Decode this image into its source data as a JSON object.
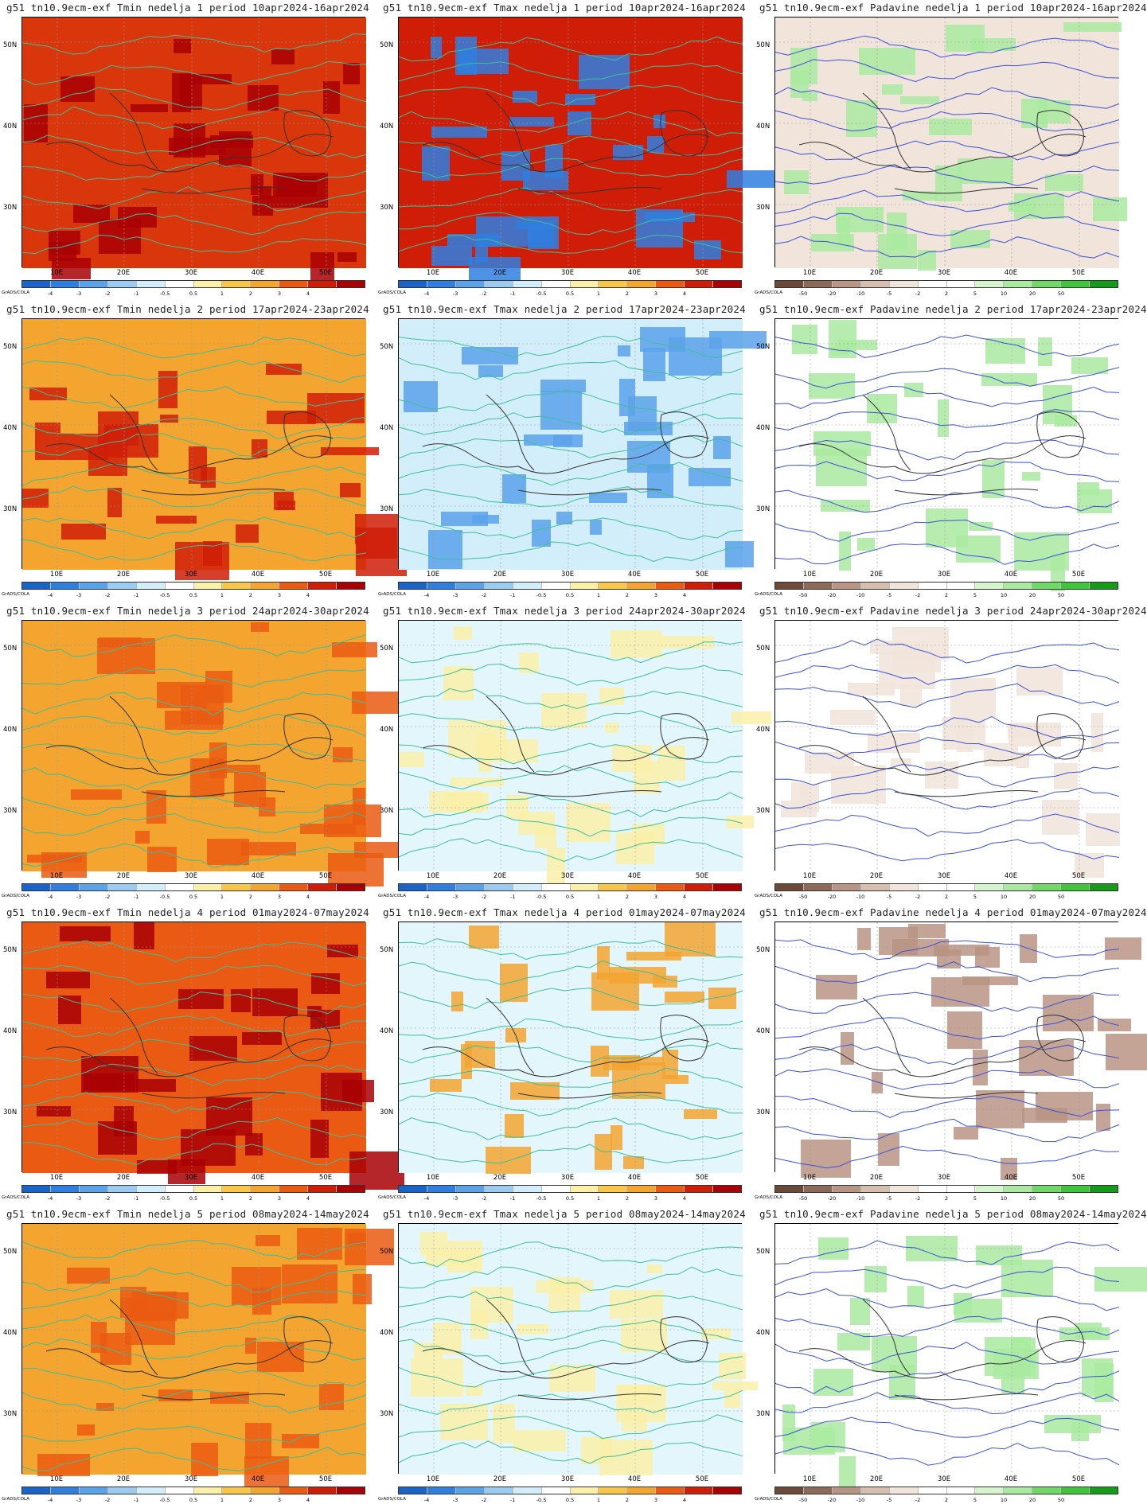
{
  "figure": {
    "y_axis_labels": [
      "50N",
      "40N",
      "30N"
    ],
    "x_axis_labels": [
      "10E",
      "20E",
      "30E",
      "40E",
      "50E"
    ],
    "grads_credit": "GrADS/COLA"
  },
  "legends": {
    "temperature": {
      "ticks": [
        "-4",
        "-3",
        "-2",
        "-1",
        "-0.5",
        "0.5",
        "1",
        "2",
        "3",
        "4"
      ],
      "colors": [
        "#1a63c8",
        "#2f7fe0",
        "#5aa2ea",
        "#9ccbf2",
        "#d2eefb",
        "#ffffff",
        "#fbf0a8",
        "#f8c74a",
        "#f3a52f",
        "#ea5a12",
        "#cf1d07",
        "#a80005"
      ]
    },
    "precipitation": {
      "ticks": [
        "-50",
        "-20",
        "-10",
        "-5",
        "-2",
        "2",
        "5",
        "10",
        "20",
        "50"
      ],
      "colors": [
        "#6b4a3a",
        "#8c6a58",
        "#b89484",
        "#d7bfb0",
        "#f1e4da",
        "#ffffff",
        "#ffffff",
        "#d6f5cf",
        "#a9eaa0",
        "#6fd866",
        "#3fc53a",
        "#149c18"
      ]
    }
  },
  "panels": [
    {
      "title": "g51 tn10.9ecm-exf Tmin nedelja 1 period 10apr2024-16apr2024",
      "variable": "Tmin",
      "week": 1,
      "dominant_color": "#d9370b",
      "secondary_color": "#a80005"
    },
    {
      "title": "g51 tn10.9ecm-exf Tmax nedelja 1 period 10apr2024-16apr2024",
      "variable": "Tmax",
      "week": 1,
      "dominant_color": "#cf1d07",
      "secondary_color": "#2f7fe0"
    },
    {
      "title": "g51 tn10.9ecm-exf Padavine nedelja 1 period 10apr2024-16apr2024",
      "variable": "Padavine",
      "week": 1,
      "dominant_color": "#f1e4da",
      "secondary_color": "#a9eaa0"
    },
    {
      "title": "g51 tn10.9ecm-exf Tmin nedelja 2 period 17apr2024-23apr2024",
      "variable": "Tmin",
      "week": 2,
      "dominant_color": "#f3a52f",
      "secondary_color": "#cf1d07"
    },
    {
      "title": "g51 tn10.9ecm-exf Tmax nedelja 2 period 17apr2024-23apr2024",
      "variable": "Tmax",
      "week": 2,
      "dominant_color": "#d2eefb",
      "secondary_color": "#5aa2ea"
    },
    {
      "title": "g51 tn10.9ecm-exf Padavine nedelja 2 period 17apr2024-23apr2024",
      "variable": "Padavine",
      "week": 2,
      "dominant_color": "#ffffff",
      "secondary_color": "#a9eaa0"
    },
    {
      "title": "g51 tn10.9ecm-exf Tmin nedelja 3 period 24apr2024-30apr2024",
      "variable": "Tmin",
      "week": 3,
      "dominant_color": "#f3a52f",
      "secondary_color": "#ea5a12"
    },
    {
      "title": "g51 tn10.9ecm-exf Tmax nedelja 3 period 24apr2024-30apr2024",
      "variable": "Tmax",
      "week": 3,
      "dominant_color": "#e3f6fc",
      "secondary_color": "#fbf0a8"
    },
    {
      "title": "g51 tn10.9ecm-exf Padavine nedelja 3 period 24apr2024-30apr2024",
      "variable": "Padavine",
      "week": 3,
      "dominant_color": "#ffffff",
      "secondary_color": "#f1e4da"
    },
    {
      "title": "g51 tn10.9ecm-exf Tmin nedelja 4 period 01may2024-07may2024",
      "variable": "Tmin",
      "week": 4,
      "dominant_color": "#ea5a12",
      "secondary_color": "#a80005"
    },
    {
      "title": "g51 tn10.9ecm-exf Tmax nedelja 4 period 01may2024-07may2024",
      "variable": "Tmax",
      "week": 4,
      "dominant_color": "#e3f6fc",
      "secondary_color": "#f3a52f"
    },
    {
      "title": "g51 tn10.9ecm-exf Padavine nedelja 4 period 01may2024-07may2024",
      "variable": "Padavine",
      "week": 4,
      "dominant_color": "#ffffff",
      "secondary_color": "#b89484"
    },
    {
      "title": "g51 tn10.9ecm-exf Tmin nedelja 5 period 08may2024-14may2024",
      "variable": "Tmin",
      "week": 5,
      "dominant_color": "#f3a52f",
      "secondary_color": "#ea5a12"
    },
    {
      "title": "g51 tn10.9ecm-exf Tmax nedelja 5 period 08may2024-14may2024",
      "variable": "Tmax",
      "week": 5,
      "dominant_color": "#e3f6fc",
      "secondary_color": "#fbf0a8"
    },
    {
      "title": "g51 tn10.9ecm-exf Padavine nedelja 5 period 08may2024-14may2024",
      "variable": "Padavine",
      "week": 5,
      "dominant_color": "#ffffff",
      "secondary_color": "#a9eaa0"
    }
  ]
}
